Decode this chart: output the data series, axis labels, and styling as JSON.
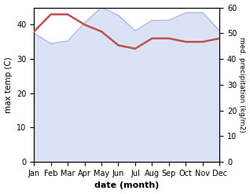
{
  "months": [
    "Jan",
    "Feb",
    "Mar",
    "Apr",
    "May",
    "Jun",
    "Jul",
    "Aug",
    "Sep",
    "Oct",
    "Nov",
    "Dec"
  ],
  "x": [
    0,
    1,
    2,
    3,
    4,
    5,
    6,
    7,
    8,
    9,
    10,
    11
  ],
  "temp": [
    38.0,
    43.0,
    43.0,
    40.0,
    38.0,
    34.0,
    33.0,
    36.0,
    36.0,
    35.0,
    35.0,
    36.0
  ],
  "precip": [
    50.0,
    46.0,
    47.0,
    54.0,
    60.0,
    57.0,
    51.0,
    55.0,
    55.0,
    58.0,
    58.0,
    51.0
  ],
  "temp_color": "#c0504d",
  "precip_fill_color": "#c5cff0",
  "precip_line_color": "#9aa8d8",
  "xlabel": "date (month)",
  "ylabel_left": "max temp (C)",
  "ylabel_right": "med. precipitation (kg/m2)",
  "ylim_left": [
    0,
    45
  ],
  "ylim_right": [
    0,
    60
  ],
  "yticks_left": [
    0,
    10,
    20,
    30,
    40
  ],
  "yticks_right": [
    0,
    10,
    20,
    30,
    40,
    50,
    60
  ],
  "background_color": "#ffffff"
}
